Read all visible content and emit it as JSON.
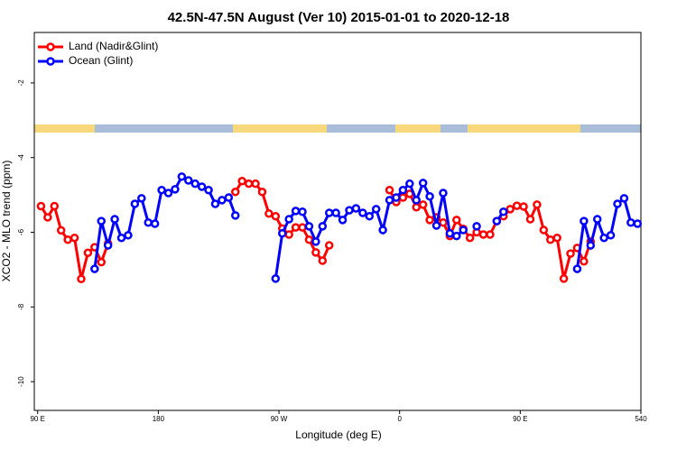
{
  "chart_data": {
    "type": "line",
    "title": "42.5N-47.5N August (Ver 10)   2015-01-01 to 2020-12-18",
    "x_label": "Longitude (deg E)",
    "y_label": "XCO2 - MLO trend (ppm)",
    "xlim": [
      87.5,
      540
    ],
    "ylim": [
      -10.77,
      -0.65
    ],
    "xticks": [
      {
        "value": 90,
        "label": "90 E"
      },
      180,
      {
        "value": 270,
        "label": "90 W"
      },
      {
        "value": 360,
        "label": "0"
      },
      {
        "value": 450,
        "label": "90 E"
      },
      540
    ],
    "yticks": [
      -10,
      -8,
      -6,
      -4,
      -2
    ],
    "legend": "top-left",
    "x": [
      92.5,
      97.5,
      102.5,
      107.5,
      112.5,
      117.5,
      122.5,
      127.5,
      132.5,
      137.5,
      142.5,
      147.5,
      152.5,
      157.5,
      162.5,
      167.5,
      172.5,
      177.5,
      182.5,
      187.5,
      192.5,
      197.5,
      202.5,
      207.5,
      212.5,
      217.5,
      222.5,
      227.5,
      232.5,
      237.5,
      242.5,
      247.5,
      252.5,
      257.5,
      262.5,
      267.5,
      272.5,
      277.5,
      282.5,
      287.5,
      292.5,
      297.5,
      302.5,
      307.5,
      312.5,
      317.5,
      322.5,
      327.5,
      332.5,
      337.5,
      342.5,
      347.5,
      352.5,
      357.5,
      362.5,
      367.5,
      372.5,
      377.5,
      382.5,
      387.5,
      392.5,
      397.5,
      402.5,
      407.5,
      412.5,
      417.5,
      422.5,
      427.5,
      432.5,
      437.5,
      442.5,
      447.5,
      452.5,
      457.5,
      462.5,
      467.5,
      472.5,
      477.5,
      482.5,
      487.5,
      492.5,
      497.5,
      502.5,
      507.5,
      512.5,
      517.5,
      522.5,
      527.5,
      532.5,
      537.5
    ],
    "series": [
      {
        "name": "Land (Nadir&Glint)",
        "color": "#ff0000",
        "values": [
          -5.3,
          -5.6,
          -5.3,
          -5.95,
          -6.2,
          -6.15,
          -7.25,
          -6.55,
          -6.4,
          -6.8,
          -6.3,
          null,
          null,
          null,
          null,
          null,
          null,
          null,
          null,
          null,
          null,
          null,
          null,
          null,
          null,
          null,
          null,
          null,
          null,
          -4.92,
          -4.63,
          -4.7,
          -4.7,
          -4.92,
          -5.5,
          -5.57,
          -5.9,
          -6.06,
          -5.87,
          -5.87,
          -6.2,
          -6.54,
          -6.76,
          -6.35,
          null,
          null,
          null,
          null,
          null,
          null,
          null,
          null,
          -4.87,
          -5.19,
          -5.07,
          -4.97,
          -5.33,
          -5.26,
          -5.67,
          -5.6,
          -5.74,
          -6.1,
          -5.67,
          -5.91,
          -6.15,
          -6.0,
          -6.06,
          -6.06,
          -5.7,
          -5.57,
          -5.38,
          -5.29,
          -5.31,
          -5.65,
          -5.26,
          -5.94,
          -6.2,
          -6.15,
          -7.24,
          -6.57,
          -6.42,
          -6.78,
          -6.25,
          null,
          null,
          null,
          null,
          null,
          null,
          null
        ]
      },
      {
        "name": "Ocean (Glint)",
        "color": "#0000ff",
        "values": [
          null,
          null,
          null,
          null,
          null,
          null,
          null,
          null,
          -6.98,
          -5.7,
          -6.35,
          -5.65,
          -6.15,
          -6.08,
          -5.24,
          -5.09,
          -5.74,
          -5.77,
          -4.87,
          -4.95,
          -4.85,
          -4.51,
          -4.61,
          -4.7,
          -4.78,
          -4.87,
          -5.24,
          -5.14,
          -5.07,
          -5.55,
          null,
          null,
          null,
          null,
          null,
          -7.24,
          -6.03,
          -5.65,
          -5.43,
          -5.45,
          -5.84,
          -6.25,
          -5.84,
          -5.48,
          -5.48,
          -5.67,
          -5.41,
          -5.36,
          -5.48,
          -5.57,
          -5.38,
          -5.94,
          -5.14,
          -5.07,
          -4.87,
          -4.7,
          -5.14,
          -4.68,
          -5.04,
          -5.82,
          -4.95,
          -6.03,
          -6.1,
          -5.94,
          null,
          -5.84,
          null,
          null,
          -5.7,
          -5.45,
          null,
          null,
          null,
          null,
          null,
          null,
          null,
          null,
          null,
          null,
          -6.98,
          -5.7,
          -6.35,
          -5.65,
          -6.15,
          -6.08,
          -5.24,
          -5.09,
          -5.74,
          -5.77
        ]
      }
    ]
  }
}
